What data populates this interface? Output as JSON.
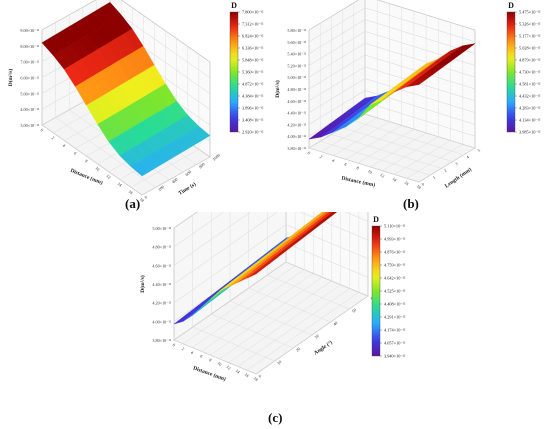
{
  "chart_data": [
    {
      "type": "surface3d",
      "panel_label": "(a)",
      "title": "",
      "xlabel": "Distance (mm)",
      "ylabel": "Time (s)",
      "zlabel": "D(m²/s)",
      "z_ticks": [
        "3.00×10⁻¹²",
        "4.00×10⁻¹²",
        "5.00×10⁻¹²",
        "6.00×10⁻¹²",
        "7.00×10⁻¹²",
        "8.00×10⁻¹²",
        "9.00×10⁻¹²"
      ],
      "x_ticks": [
        "0",
        "2",
        "4",
        "6",
        "8",
        "10",
        "12",
        "14",
        "16",
        "18"
      ],
      "y_ticks": [
        "0",
        "200",
        "400",
        "600",
        "800",
        "1000"
      ],
      "surface_profile": [
        8.2,
        7.9,
        7.5,
        6.9,
        6.2,
        5.5,
        4.9,
        4.5,
        4.3,
        4.2
      ],
      "colorbar": {
        "title": "D",
        "values": [
          "7.800×10⁻¹²",
          "7.312×10⁻¹²",
          "6.824×10⁻¹²",
          "6.336×10⁻¹²",
          "5.848×10⁻¹²",
          "5.360×10⁻¹²",
          "4.872×10⁻¹²",
          "4.384×10⁻¹²",
          "3.896×10⁻¹²",
          "3.408×10⁻¹²",
          "2.920×10⁻¹²"
        ]
      }
    },
    {
      "type": "surface3d",
      "panel_label": "(b)",
      "title": "",
      "xlabel": "Distance (mm)",
      "ylabel": "Length (mm)",
      "zlabel": "D(m²/s)",
      "z_ticks": [
        "3.80×10⁻¹²",
        "4.00×10⁻¹²",
        "4.20×10⁻¹²",
        "4.40×10⁻¹²",
        "4.60×10⁻¹²",
        "4.80×10⁻¹²",
        "5.00×10⁻¹²",
        "5.20×10⁻¹²",
        "5.40×10⁻¹²",
        "5.60×10⁻¹²",
        "5.80×10⁻¹²"
      ],
      "x_ticks": [
        "0",
        "2",
        "4",
        "6",
        "8",
        "10",
        "12",
        "14",
        "16",
        "18"
      ],
      "y_ticks": [
        "0",
        "1",
        "2",
        "3",
        "4",
        "5"
      ],
      "surface_profile": [
        3.95,
        4.05,
        4.2,
        4.35,
        4.55,
        4.85,
        5.0,
        5.2,
        5.35,
        5.45
      ],
      "colorbar": {
        "title": "D",
        "values": [
          "5.475×10⁻¹²",
          "5.326×10⁻¹²",
          "5.177×10⁻¹²",
          "5.028×10⁻¹²",
          "4.879×10⁻¹²",
          "4.730×10⁻¹²",
          "4.581×10⁻¹²",
          "4.432×10⁻¹²",
          "4.283×10⁻¹²",
          "4.134×10⁻¹²",
          "3.985×10⁻¹²"
        ]
      }
    },
    {
      "type": "surface3d",
      "panel_label": "(c)",
      "title": "",
      "xlabel": "Distance (mm)",
      "ylabel": "Angle (°)",
      "zlabel": "D(m²/s)",
      "z_ticks": [
        "3.80×10⁻¹²",
        "4.00×10⁻¹²",
        "4.20×10⁻¹²",
        "4.40×10⁻¹²",
        "4.60×10⁻¹²",
        "4.80×10⁻¹²",
        "5.00×10⁻¹²"
      ],
      "x_ticks": [
        "0",
        "2",
        "4",
        "6",
        "8",
        "10",
        "12",
        "14",
        "16",
        "18"
      ],
      "y_ticks": [
        "0",
        "10",
        "20",
        "30",
        "40",
        "50",
        "60"
      ],
      "surface_profile": [
        4.0,
        4.08,
        4.2,
        4.35,
        4.5,
        4.65,
        4.75,
        4.85,
        4.95,
        5.05
      ],
      "colorbar": {
        "title": "D",
        "values": [
          "5.110×10⁻¹²",
          "4.993×10⁻¹²",
          "4.876×10⁻¹²",
          "4.759×10⁻¹²",
          "4.642×10⁻¹²",
          "4.525×10⁻¹²",
          "4.408×10⁻¹²",
          "4.291×10⁻¹²",
          "4.174×10⁻¹²",
          "4.057×10⁻¹²",
          "3.940×10⁻¹²"
        ]
      }
    }
  ]
}
